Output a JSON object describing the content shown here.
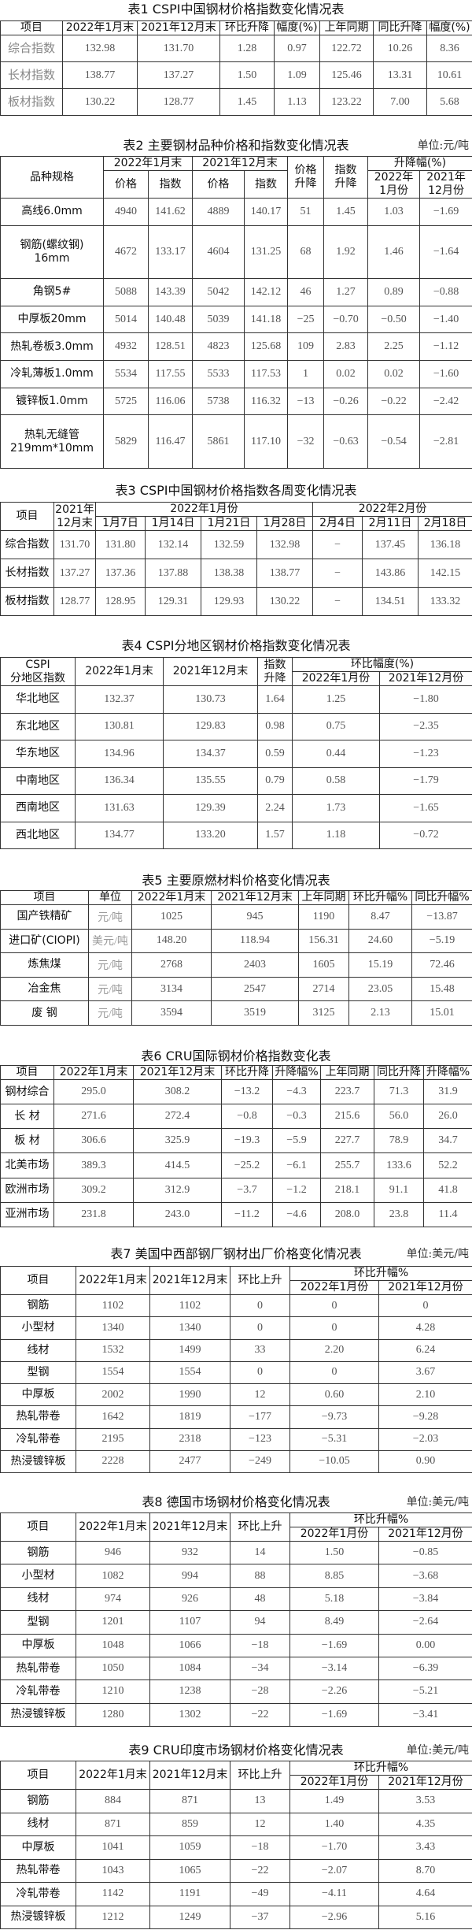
{
  "tables": [
    {
      "title": "表1  CSPI中国钢材价格指数变化情况表",
      "unit": "",
      "header": [
        [
          {
            "text": "项目"
          },
          {
            "text": "2022年1月末"
          },
          {
            "text": "2021年12月末"
          },
          {
            "text": "环比升降"
          },
          {
            "text": "幅度(%)"
          },
          {
            "text": "上年同期"
          },
          {
            "text": "同比升降"
          },
          {
            "text": "幅度(%)"
          }
        ]
      ],
      "rows": [
        [
          "综合指数",
          "132.98",
          "131.70",
          "1.28",
          "0.97",
          "122.72",
          "10.26",
          "8.36"
        ],
        [
          "长材指数",
          "138.77",
          "137.27",
          "1.50",
          "1.09",
          "125.46",
          "13.31",
          "10.61"
        ],
        [
          "板材指数",
          "130.22",
          "128.77",
          "1.45",
          "1.13",
          "123.22",
          "7.00",
          "5.68"
        ]
      ]
    },
    {
      "title": "表2  主要钢材品种价格和指数变化情况表",
      "unit": "单位:元/吨",
      "header": [
        [
          {
            "text": "品种规格",
            "rowspan": 2
          },
          {
            "text": "2022年1月末",
            "colspan": 2
          },
          {
            "text": "2021年12月末",
            "colspan": 2
          },
          {
            "text": "价格\n升降",
            "rowspan": 2
          },
          {
            "text": "指数\n升降",
            "rowspan": 2
          },
          {
            "text": "升降幅(%)",
            "colspan": 2
          }
        ],
        [
          {
            "text": "价格"
          },
          {
            "text": "指数"
          },
          {
            "text": "价格"
          },
          {
            "text": "指数"
          },
          {
            "text": "2022年\n1月份"
          },
          {
            "text": "2021年\n12月份"
          }
        ]
      ],
      "rows": [
        [
          "高线6.0mm",
          "4940",
          "141.62",
          "4889",
          "140.17",
          "51",
          "1.45",
          "1.03",
          "−1.69"
        ],
        [
          "钢筋(螺纹钢)\n16mm",
          "4672",
          "133.17",
          "4604",
          "131.25",
          "68",
          "1.92",
          "1.46",
          "−1.64"
        ],
        [
          "角钢5#",
          "5088",
          "143.39",
          "5042",
          "142.12",
          "46",
          "1.27",
          "0.89",
          "−0.88"
        ],
        [
          "中厚板20mm",
          "5014",
          "140.48",
          "5039",
          "141.18",
          "−25",
          "−0.70",
          "−0.50",
          "−1.40"
        ],
        [
          "热轧卷板3.0mm",
          "4932",
          "128.51",
          "4823",
          "125.68",
          "109",
          "2.83",
          "2.25",
          "−1.12"
        ],
        [
          "冷轧薄板1.0mm",
          "5534",
          "117.55",
          "5533",
          "117.53",
          "1",
          "0.02",
          "0.02",
          "−1.60"
        ],
        [
          "镀锌板1.0mm",
          "5725",
          "116.06",
          "5738",
          "116.32",
          "−13",
          "−0.26",
          "−0.22",
          "−2.42"
        ],
        [
          "热轧无缝管\n219mm*10mm",
          "5829",
          "116.47",
          "5861",
          "117.10",
          "−32",
          "−0.63",
          "−0.54",
          "−2.81"
        ]
      ]
    },
    {
      "title": "表3  CSPI中国钢材价格指数各周变化情况表",
      "unit": "",
      "header": [
        [
          {
            "text": "项目",
            "rowspan": 2
          },
          {
            "text": "2021年\n12月末",
            "rowspan": 2
          },
          {
            "text": "2022年1月份",
            "colspan": 4
          },
          {
            "text": "2022年2月份",
            "colspan": 3
          }
        ],
        [
          {
            "text": "1月7日"
          },
          {
            "text": "1月14日"
          },
          {
            "text": "1月21日"
          },
          {
            "text": "1月28日"
          },
          {
            "text": "2月4日"
          },
          {
            "text": "2月11日"
          },
          {
            "text": "2月18日"
          }
        ]
      ],
      "rows": [
        [
          "综合指数",
          "131.70",
          "131.80",
          "132.14",
          "132.59",
          "132.98",
          "−",
          "137.45",
          "136.18"
        ],
        [
          "长材指数",
          "137.27",
          "137.36",
          "137.88",
          "138.38",
          "138.77",
          "−",
          "143.86",
          "142.15"
        ],
        [
          "板材指数",
          "128.77",
          "128.95",
          "129.31",
          "129.93",
          "130.22",
          "−",
          "134.51",
          "133.32"
        ]
      ]
    },
    {
      "title": "表4  CSPI分地区钢材价格指数变化情况表",
      "unit": "",
      "header": [
        [
          {
            "text": "CSPI\n分地区指数",
            "rowspan": 2
          },
          {
            "text": "2022年1月末",
            "rowspan": 2
          },
          {
            "text": "2021年12月末",
            "rowspan": 2
          },
          {
            "text": "指数\n升降",
            "rowspan": 2
          },
          {
            "text": "环比幅度(%)",
            "colspan": 2
          }
        ],
        [
          {
            "text": "2022年1月份"
          },
          {
            "text": "2021年12月份"
          }
        ]
      ],
      "rows": [
        [
          "华北地区",
          "132.37",
          "130.73",
          "1.64",
          "1.25",
          "−1.80"
        ],
        [
          "东北地区",
          "130.81",
          "129.83",
          "0.98",
          "0.75",
          "−2.35"
        ],
        [
          "华东地区",
          "134.96",
          "134.37",
          "0.59",
          "0.44",
          "−1.23"
        ],
        [
          "中南地区",
          "136.34",
          "135.55",
          "0.79",
          "0.58",
          "−1.79"
        ],
        [
          "西南地区",
          "131.63",
          "129.39",
          "2.24",
          "1.73",
          "−1.65"
        ],
        [
          "西北地区",
          "134.77",
          "133.20",
          "1.57",
          "1.18",
          "−0.72"
        ]
      ]
    },
    {
      "title": "表5  主要原燃材料价格变化情况表",
      "unit": "",
      "header": [
        [
          {
            "text": "项目"
          },
          {
            "text": "单位"
          },
          {
            "text": "2022年1月末"
          },
          {
            "text": "2021年12月末"
          },
          {
            "text": "上年同期"
          },
          {
            "text": "环比升幅%"
          },
          {
            "text": "同比升幅%"
          }
        ]
      ],
      "rows": [
        [
          "国产铁精矿",
          "元/吨",
          "1025",
          "945",
          "1190",
          "8.47",
          "−13.87"
        ],
        [
          "进口矿(CIOPI)",
          "美元/吨",
          "148.20",
          "118.94",
          "156.31",
          "24.60",
          "−5.19"
        ],
        [
          "炼焦煤",
          "元/吨",
          "2768",
          "2403",
          "1605",
          "15.19",
          "72.46"
        ],
        [
          "冶金焦",
          "元/吨",
          "3134",
          "2547",
          "2714",
          "23.05",
          "15.48"
        ],
        [
          "废  钢",
          "元/吨",
          "3594",
          "3519",
          "3125",
          "2.13",
          "15.01"
        ]
      ]
    },
    {
      "title": "表6  CRU国际钢材价格指数变化表",
      "unit": "",
      "header": [
        [
          {
            "text": "项目"
          },
          {
            "text": "2022年1月末"
          },
          {
            "text": "2021年12月末"
          },
          {
            "text": "环比升降"
          },
          {
            "text": "升降幅%"
          },
          {
            "text": "上年同期"
          },
          {
            "text": "同比升降"
          },
          {
            "text": "升降幅%"
          }
        ]
      ],
      "rows": [
        [
          "钢材综合",
          "295.0",
          "308.2",
          "−13.2",
          "−4.3",
          "223.7",
          "71.3",
          "31.9"
        ],
        [
          "长  材",
          "271.6",
          "272.4",
          "−0.8",
          "−0.3",
          "215.6",
          "56.0",
          "26.0"
        ],
        [
          "板  材",
          "306.6",
          "325.9",
          "−19.3",
          "−5.9",
          "227.7",
          "78.9",
          "34.7"
        ],
        [
          "北美市场",
          "389.3",
          "414.5",
          "−25.2",
          "−6.1",
          "255.7",
          "133.6",
          "52.2"
        ],
        [
          "欧洲市场",
          "309.2",
          "312.9",
          "−3.7",
          "−1.2",
          "218.1",
          "91.1",
          "41.8"
        ],
        [
          "亚洲市场",
          "231.8",
          "243.0",
          "−11.2",
          "−4.6",
          "208.0",
          "23.8",
          "11.4"
        ]
      ]
    },
    {
      "title": "表7  美国中西部钢厂钢材出厂价格变化情况表",
      "unit": "单位:美元/吨",
      "header": [
        [
          {
            "text": "项目",
            "rowspan": 2
          },
          {
            "text": "2022年1月末",
            "rowspan": 2
          },
          {
            "text": "2021年12月末",
            "rowspan": 2
          },
          {
            "text": "环比上升",
            "rowspan": 2
          },
          {
            "text": "环比升幅%",
            "colspan": 2
          }
        ],
        [
          {
            "text": "2022年1月份"
          },
          {
            "text": "2021年12月份"
          }
        ]
      ],
      "rows": [
        [
          "钢筋",
          "1102",
          "1102",
          "0",
          "0",
          "0"
        ],
        [
          "小型材",
          "1340",
          "1340",
          "0",
          "0",
          "4.28"
        ],
        [
          "线材",
          "1532",
          "1499",
          "33",
          "2.20",
          "6.24"
        ],
        [
          "型钢",
          "1554",
          "1554",
          "0",
          "0",
          "3.67"
        ],
        [
          "中厚板",
          "2002",
          "1990",
          "12",
          "0.60",
          "2.10"
        ],
        [
          "热轧带卷",
          "1642",
          "1819",
          "−177",
          "−9.73",
          "−9.28"
        ],
        [
          "冷轧带卷",
          "2195",
          "2318",
          "−123",
          "−5.31",
          "−2.03"
        ],
        [
          "热浸镀锌板",
          "2228",
          "2477",
          "−249",
          "−10.05",
          "0.90"
        ]
      ]
    },
    {
      "title": "表8  德国市场钢材价格变化情况表",
      "unit": "单位:美元/吨",
      "header": [
        [
          {
            "text": "项目",
            "rowspan": 2
          },
          {
            "text": "2022年1月末",
            "rowspan": 2
          },
          {
            "text": "2021年12月末",
            "rowspan": 2
          },
          {
            "text": "环比上升",
            "rowspan": 2
          },
          {
            "text": "环比升幅%",
            "colspan": 2
          }
        ],
        [
          {
            "text": "2022年1月份"
          },
          {
            "text": "2021年12月份"
          }
        ]
      ],
      "rows": [
        [
          "钢筋",
          "946",
          "932",
          "14",
          "1.50",
          "−0.85"
        ],
        [
          "小型材",
          "1082",
          "994",
          "88",
          "8.85",
          "−3.68"
        ],
        [
          "线材",
          "974",
          "926",
          "48",
          "5.18",
          "−3.84"
        ],
        [
          "型钢",
          "1201",
          "1107",
          "94",
          "8.49",
          "−2.64"
        ],
        [
          "中厚板",
          "1048",
          "1066",
          "−18",
          "−1.69",
          "0.00"
        ],
        [
          "热轧带卷",
          "1050",
          "1084",
          "−34",
          "−3.14",
          "−6.39"
        ],
        [
          "冷轧带卷",
          "1210",
          "1238",
          "−28",
          "−2.26",
          "−5.21"
        ],
        [
          "热浸镀锌板",
          "1280",
          "1302",
          "−22",
          "−1.69",
          "−3.41"
        ]
      ]
    },
    {
      "title": "表9  CRU印度市场钢材价格变化情况表",
      "unit": "单位:美元/吨",
      "header": [
        [
          {
            "text": "项目",
            "rowspan": 2
          },
          {
            "text": "2022年1月末",
            "rowspan": 2
          },
          {
            "text": "2021年12月末",
            "rowspan": 2
          },
          {
            "text": "环比上升",
            "rowspan": 2
          },
          {
            "text": "环比升幅%",
            "colspan": 2
          }
        ],
        [
          {
            "text": "2022年1月份"
          },
          {
            "text": "2021年12月份"
          }
        ]
      ],
      "rows": [
        [
          "钢筋",
          "884",
          "871",
          "13",
          "1.49",
          "3.53"
        ],
        [
          "线材",
          "871",
          "859",
          "12",
          "1.40",
          "4.35"
        ],
        [
          "中厚板",
          "1041",
          "1059",
          "−18",
          "−1.70",
          "3.43"
        ],
        [
          "热轧带卷",
          "1043",
          "1065",
          "−22",
          "−2.07",
          "8.70"
        ],
        [
          "冷轧带卷",
          "1142",
          "1191",
          "−49",
          "−4.11",
          "4.64"
        ],
        [
          "热浸镀锌板",
          "1212",
          "1249",
          "−37",
          "−2.96",
          "5.16"
        ]
      ]
    }
  ]
}
